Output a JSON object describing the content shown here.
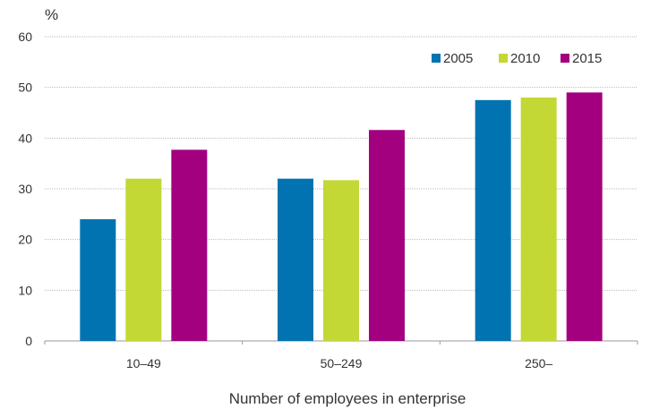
{
  "chart_data": {
    "type": "bar",
    "title": "",
    "xlabel": "Number of employees in enterprise",
    "ylabel": "%",
    "ylim": [
      0,
      60
    ],
    "yticks": [
      0,
      10,
      20,
      30,
      40,
      50,
      60
    ],
    "grid": true,
    "legend_position": "top-right",
    "categories": [
      "10–49",
      "50–249",
      "250–"
    ],
    "series": [
      {
        "name": "2005",
        "color": "#0073b0",
        "values": [
          24,
          32,
          47.5
        ]
      },
      {
        "name": "2010",
        "color": "#c3d835",
        "values": [
          32,
          31.7,
          48
        ]
      },
      {
        "name": "2015",
        "color": "#a3007f",
        "values": [
          37.7,
          41.6,
          49
        ]
      }
    ]
  }
}
